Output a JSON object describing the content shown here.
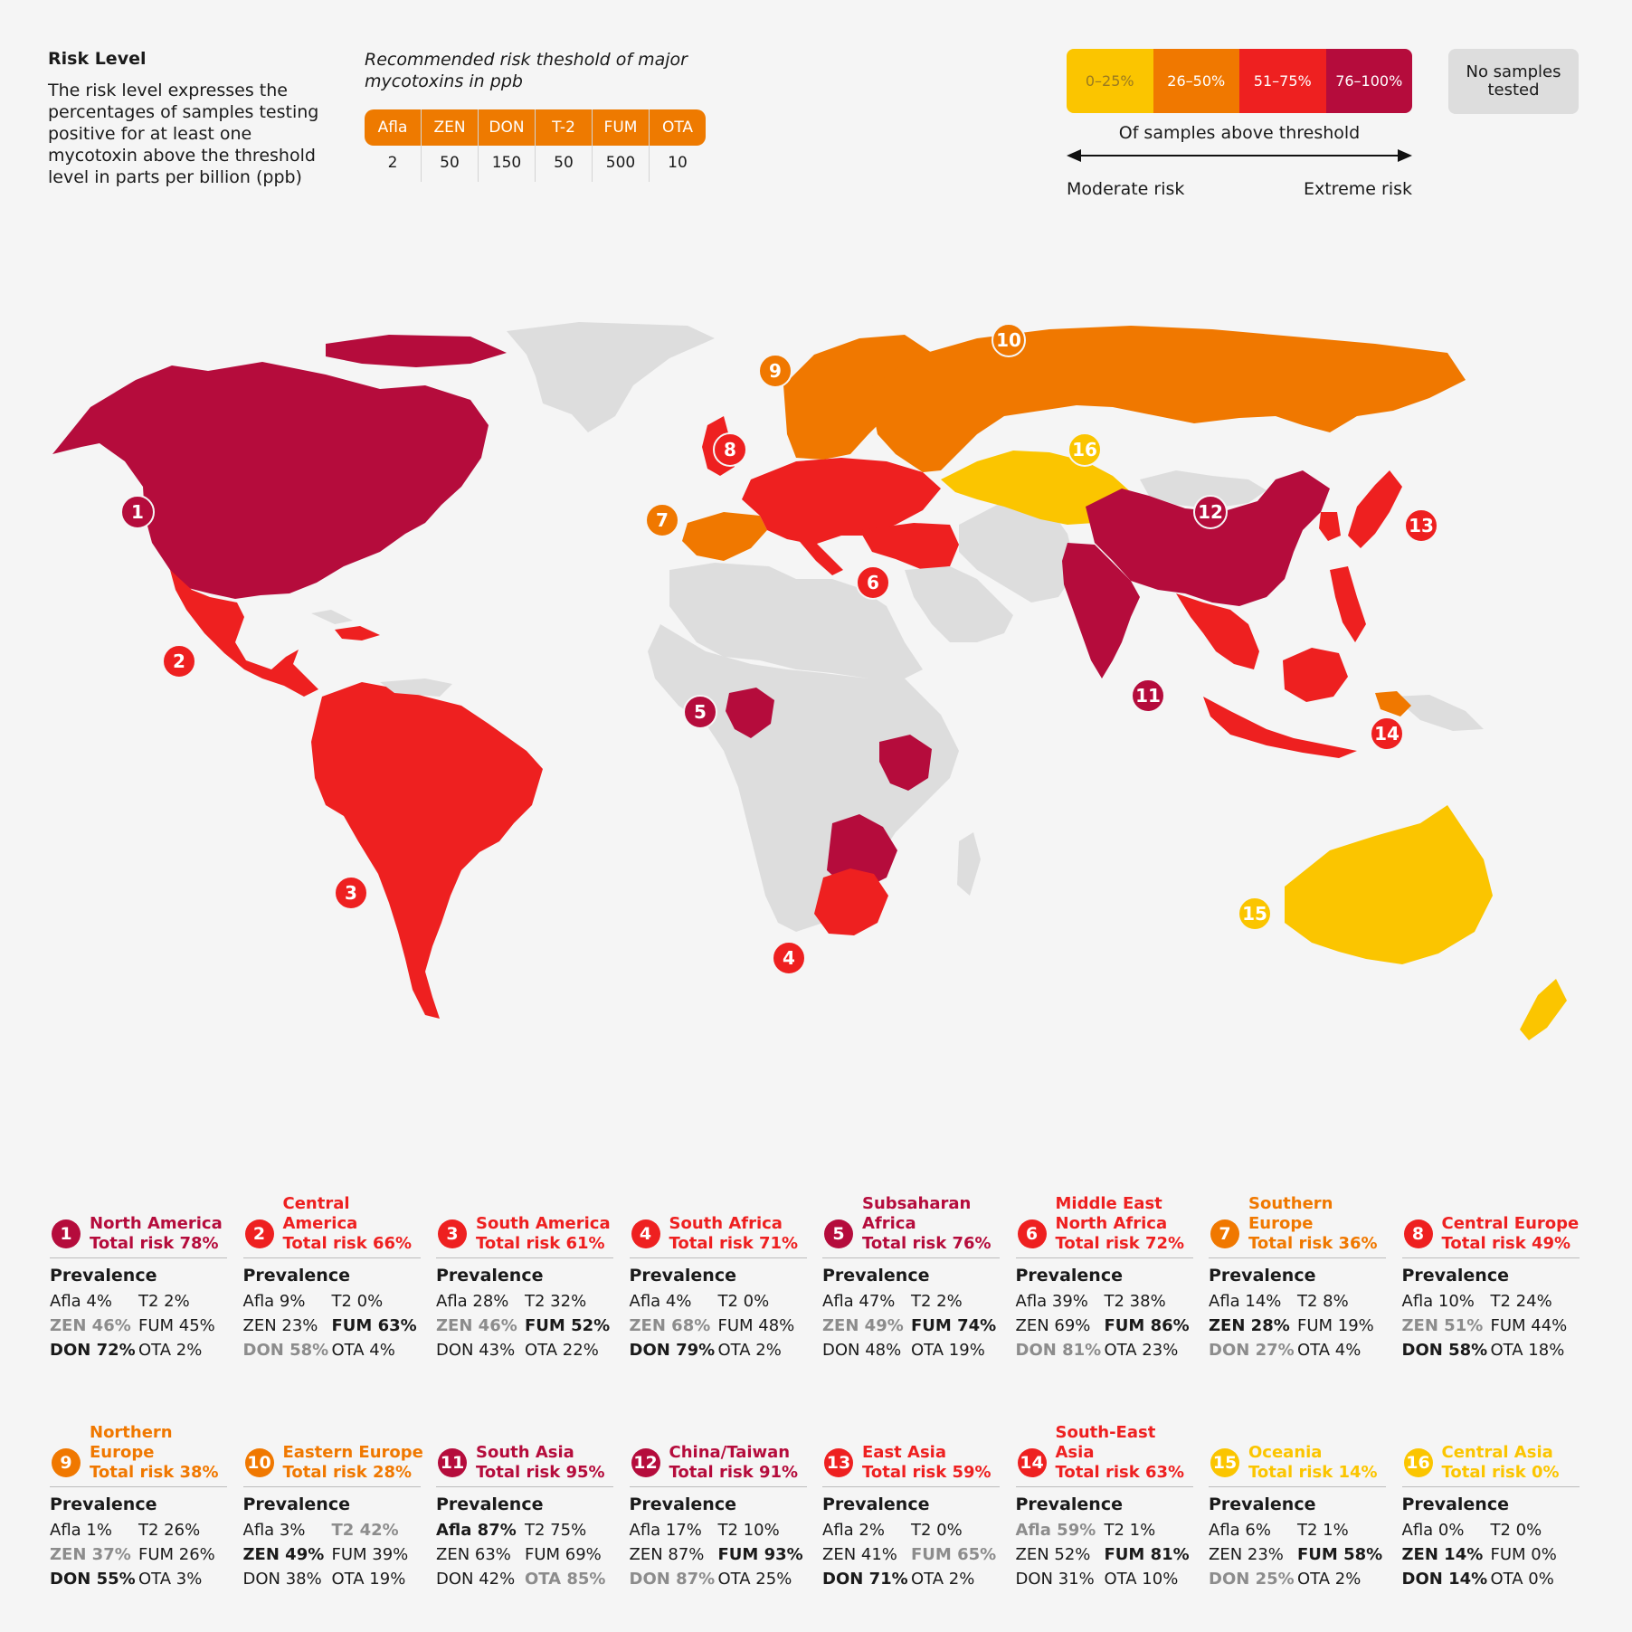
{
  "legend": {
    "title": "Risk Level",
    "description": "The risk level expresses the percentages of samples testing positive for at least one mycotoxin above the threshold level in parts per billion (ppb)"
  },
  "thresholds": {
    "title": "Recommended risk theshold of major mycotoxins in ppb",
    "items": [
      {
        "label": "Afla",
        "value": "2"
      },
      {
        "label": "ZEN",
        "value": "50"
      },
      {
        "label": "DON",
        "value": "150"
      },
      {
        "label": "T-2",
        "value": "50"
      },
      {
        "label": "FUM",
        "value": "500"
      },
      {
        "label": "OTA",
        "value": "10"
      }
    ]
  },
  "scale": {
    "bins": [
      {
        "label": "0–25%",
        "color": "#fbc500",
        "text_color": "#9a7a20"
      },
      {
        "label": "26–50%",
        "color": "#f07800",
        "text_color": "#ffffff"
      },
      {
        "label": "51–75%",
        "color": "#ee2020",
        "text_color": "#ffffff"
      },
      {
        "label": "76–100%",
        "color": "#b50c3c",
        "text_color": "#ffffff"
      }
    ],
    "no_samples": {
      "label": "No samples tested",
      "color": "#dddddd"
    },
    "caption": "Of samples above threshold",
    "left_label": "Moderate risk",
    "right_label": "Extreme risk"
  },
  "colors": {
    "extreme": "#b50c3c",
    "high": "#ee2020",
    "medium": "#f07800",
    "low": "#fbc500",
    "none": "#dddddd",
    "grey_value": "#8c8c8c"
  },
  "regions": [
    {
      "number": "1",
      "name": "North America",
      "total": "Total risk 78%",
      "level": "extreme",
      "prevalence": "Prevalence",
      "values": [
        {
          "t": "Afla 4%"
        },
        {
          "t": "T2 2%"
        },
        {
          "t": "ZEN 46%",
          "s": "grey"
        },
        {
          "t": "FUM 45%"
        },
        {
          "t": "DON 72%",
          "s": "bold"
        },
        {
          "t": "OTA 2%"
        }
      ]
    },
    {
      "number": "2",
      "name": "Central America",
      "total": "Total risk 66%",
      "level": "high",
      "prevalence": "Prevalence",
      "values": [
        {
          "t": "Afla 9%"
        },
        {
          "t": "T2 0%"
        },
        {
          "t": "ZEN 23%"
        },
        {
          "t": "FUM 63%",
          "s": "bold"
        },
        {
          "t": "DON 58%",
          "s": "grey"
        },
        {
          "t": "OTA 4%"
        }
      ]
    },
    {
      "number": "3",
      "name": "South America",
      "total": "Total risk 61%",
      "level": "high",
      "prevalence": "Prevalence",
      "values": [
        {
          "t": "Afla 28%"
        },
        {
          "t": "T2 32%"
        },
        {
          "t": "ZEN 46%",
          "s": "grey"
        },
        {
          "t": "FUM 52%",
          "s": "bold"
        },
        {
          "t": "DON 43%"
        },
        {
          "t": "OTA 22%"
        }
      ]
    },
    {
      "number": "4",
      "name": "South Africa",
      "total": "Total risk 71%",
      "level": "high",
      "prevalence": "Prevalence",
      "values": [
        {
          "t": "Afla 4%"
        },
        {
          "t": "T2 0%"
        },
        {
          "t": "ZEN 68%",
          "s": "grey"
        },
        {
          "t": "FUM 48%"
        },
        {
          "t": "DON 79%",
          "s": "bold"
        },
        {
          "t": "OTA 2%"
        }
      ]
    },
    {
      "number": "5",
      "name": "Subsaharan Africa",
      "total": "Total risk 76%",
      "level": "extreme",
      "prevalence": "Prevalence",
      "values": [
        {
          "t": "Afla 47%"
        },
        {
          "t": "T2 2%"
        },
        {
          "t": "ZEN 49%",
          "s": "grey"
        },
        {
          "t": "FUM 74%",
          "s": "bold"
        },
        {
          "t": "DON 48%"
        },
        {
          "t": "OTA 19%"
        }
      ]
    },
    {
      "number": "6",
      "name": "Middle East North Africa",
      "total": "Total risk 72%",
      "level": "high",
      "prevalence": "Prevalence",
      "values": [
        {
          "t": "Afla 39%"
        },
        {
          "t": "T2 38%"
        },
        {
          "t": "ZEN 69%"
        },
        {
          "t": "FUM 86%",
          "s": "bold"
        },
        {
          "t": "DON 81%",
          "s": "grey"
        },
        {
          "t": "OTA 23%"
        }
      ]
    },
    {
      "number": "7",
      "name": "Southern Europe",
      "total": "Total risk 36%",
      "level": "medium",
      "prevalence": "Prevalence",
      "values": [
        {
          "t": "Afla 14%"
        },
        {
          "t": "T2 8%"
        },
        {
          "t": "ZEN 28%",
          "s": "bold"
        },
        {
          "t": "FUM 19%"
        },
        {
          "t": "DON 27%",
          "s": "grey"
        },
        {
          "t": "OTA 4%"
        }
      ]
    },
    {
      "number": "8",
      "name": "Central Europe",
      "total": "Total risk 49%",
      "level": "high",
      "prevalence": "Prevalence",
      "values": [
        {
          "t": "Afla 10%"
        },
        {
          "t": "T2 24%"
        },
        {
          "t": "ZEN 51%",
          "s": "grey"
        },
        {
          "t": "FUM 44%"
        },
        {
          "t": "DON 58%",
          "s": "bold"
        },
        {
          "t": "OTA 18%"
        }
      ]
    },
    {
      "number": "9",
      "name": "Northern Europe",
      "total": "Total risk 38%",
      "level": "medium",
      "prevalence": "Prevalence",
      "values": [
        {
          "t": "Afla 1%"
        },
        {
          "t": "T2 26%"
        },
        {
          "t": "ZEN 37%",
          "s": "grey"
        },
        {
          "t": "FUM 26%"
        },
        {
          "t": "DON 55%",
          "s": "bold"
        },
        {
          "t": "OTA 3%"
        }
      ]
    },
    {
      "number": "10",
      "name": "Eastern Europe",
      "total": "Total risk 28%",
      "level": "medium",
      "prevalence": "Prevalence",
      "values": [
        {
          "t": "Afla 3%"
        },
        {
          "t": "T2 42%",
          "s": "grey"
        },
        {
          "t": "ZEN 49%",
          "s": "bold"
        },
        {
          "t": "FUM 39%"
        },
        {
          "t": "DON 38%"
        },
        {
          "t": "OTA 19%"
        }
      ]
    },
    {
      "number": "11",
      "name": "South Asia",
      "total": "Total risk 95%",
      "level": "extreme",
      "prevalence": "Prevalence",
      "values": [
        {
          "t": "Afla 87%",
          "s": "bold"
        },
        {
          "t": "T2 75%"
        },
        {
          "t": "ZEN 63%"
        },
        {
          "t": "FUM 69%"
        },
        {
          "t": "DON 42%"
        },
        {
          "t": "OTA 85%",
          "s": "grey"
        }
      ]
    },
    {
      "number": "12",
      "name": "China/Taiwan",
      "total": "Total risk 91%",
      "level": "extreme",
      "prevalence": "Prevalence",
      "values": [
        {
          "t": "Afla 17%"
        },
        {
          "t": "T2 10%"
        },
        {
          "t": "ZEN 87%"
        },
        {
          "t": "FUM 93%",
          "s": "bold"
        },
        {
          "t": "DON 87%",
          "s": "grey"
        },
        {
          "t": "OTA 25%"
        }
      ]
    },
    {
      "number": "13",
      "name": "East Asia",
      "total": "Total risk 59%",
      "level": "high",
      "prevalence": "Prevalence",
      "values": [
        {
          "t": "Afla 2%"
        },
        {
          "t": "T2 0%"
        },
        {
          "t": "ZEN 41%"
        },
        {
          "t": "FUM 65%",
          "s": "grey"
        },
        {
          "t": "DON 71%",
          "s": "bold"
        },
        {
          "t": "OTA 2%"
        }
      ]
    },
    {
      "number": "14",
      "name": "South-East Asia",
      "total": "Total risk 63%",
      "level": "high",
      "prevalence": "Prevalence",
      "values": [
        {
          "t": "Afla 59%",
          "s": "grey"
        },
        {
          "t": "T2 1%"
        },
        {
          "t": "ZEN 52%"
        },
        {
          "t": "FUM 81%",
          "s": "bold"
        },
        {
          "t": "DON 31%"
        },
        {
          "t": "OTA 10%"
        }
      ]
    },
    {
      "number": "15",
      "name": "Oceania",
      "total": "Total risk 14%",
      "level": "low",
      "prevalence": "Prevalence",
      "values": [
        {
          "t": "Afla 6%"
        },
        {
          "t": "T2 1%"
        },
        {
          "t": "ZEN 23%"
        },
        {
          "t": "FUM 58%",
          "s": "bold"
        },
        {
          "t": "DON 25%",
          "s": "grey"
        },
        {
          "t": "OTA 2%"
        }
      ]
    },
    {
      "number": "16",
      "name": "Central Asia",
      "total": "Total risk 0%",
      "level": "low",
      "prevalence": "Prevalence",
      "values": [
        {
          "t": "Afla 0%"
        },
        {
          "t": "T2 0%"
        },
        {
          "t": "ZEN 14%",
          "s": "bold"
        },
        {
          "t": "FUM 0%"
        },
        {
          "t": "DON 14%",
          "s": "bold"
        },
        {
          "t": "OTA 0%"
        }
      ]
    }
  ]
}
